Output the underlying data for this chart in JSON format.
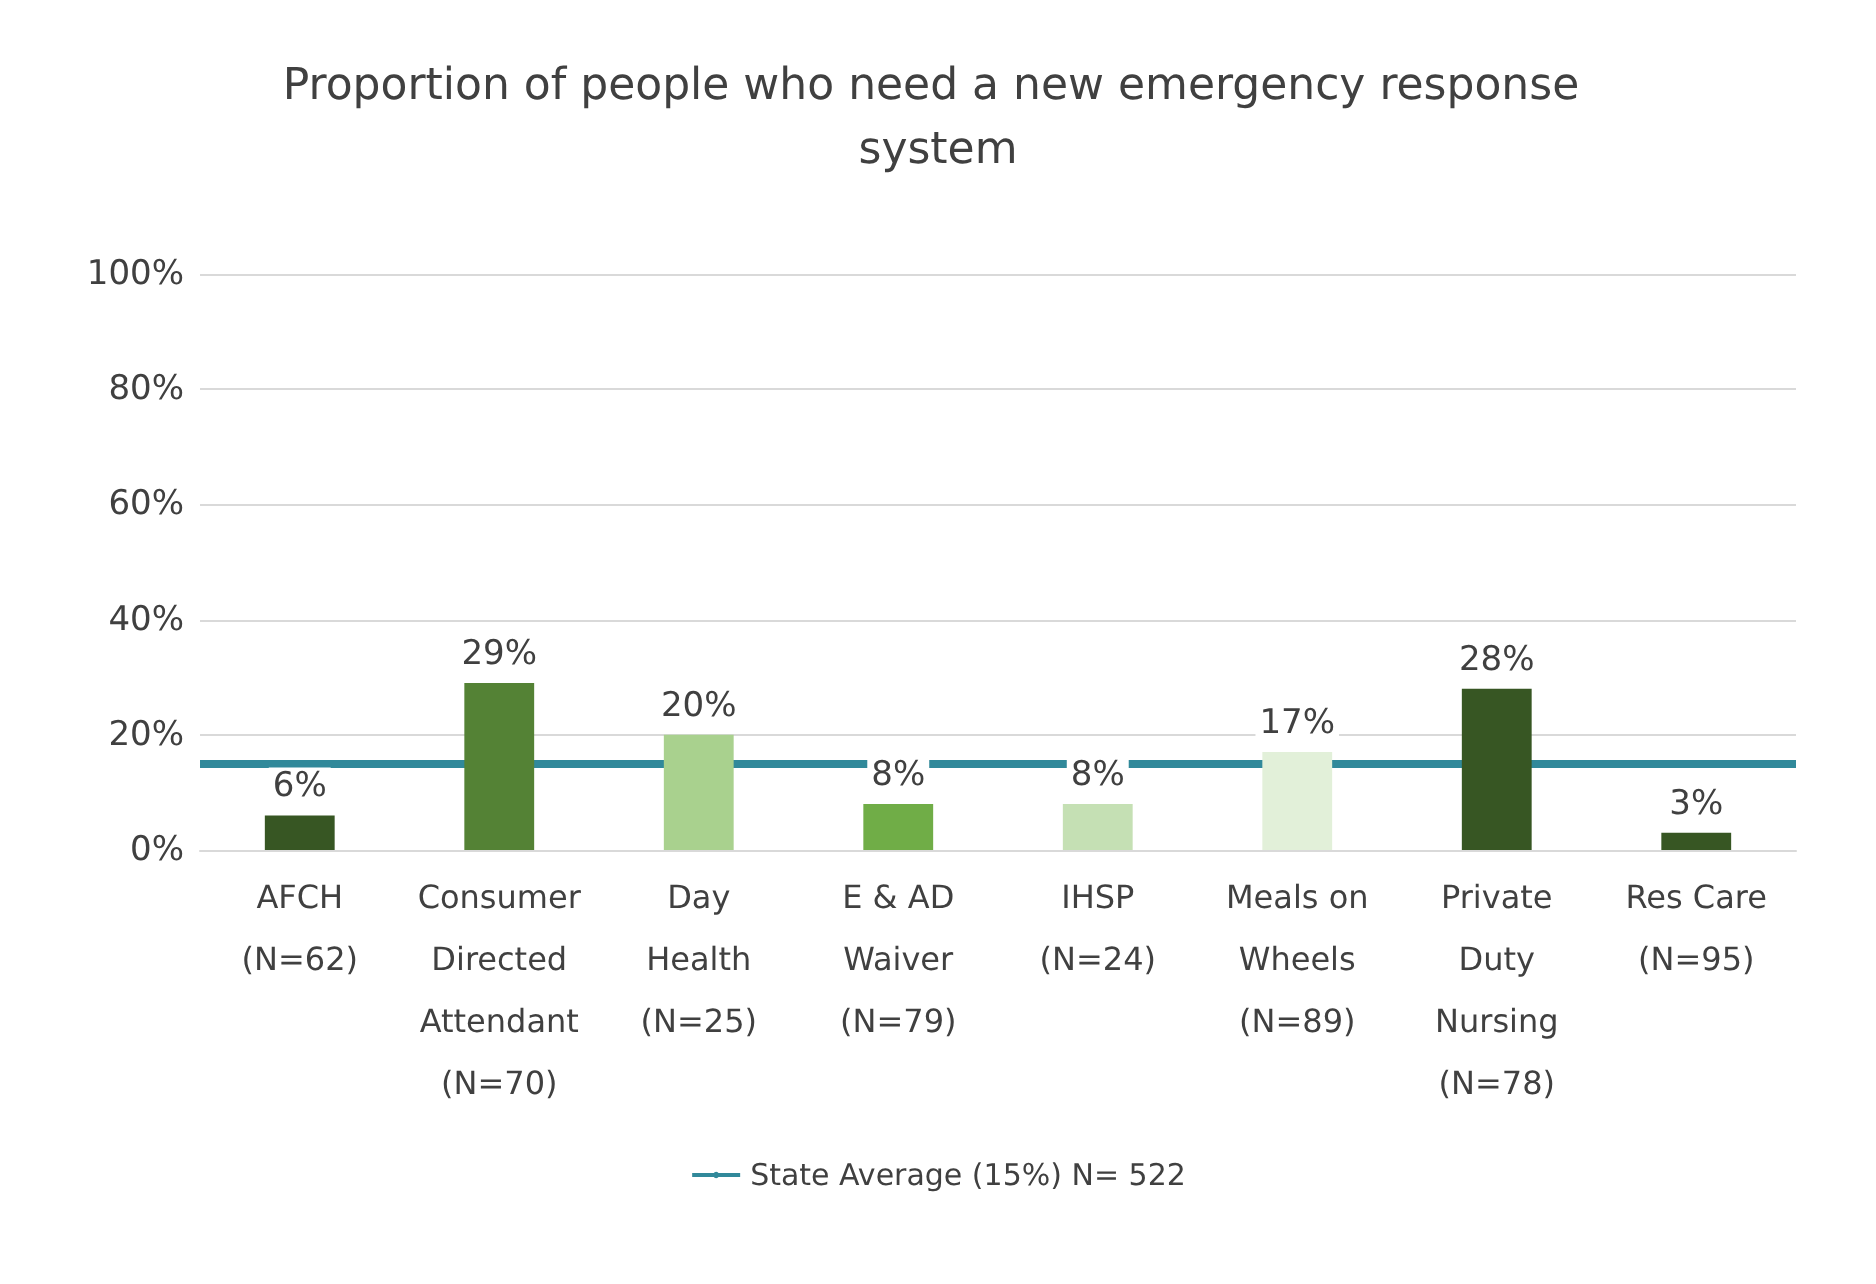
{
  "chart_data": {
    "type": "bar",
    "title": "Proportion of people who need a new emergency response system",
    "categories": [
      "AFCH\n(N=62)",
      "Consumer\nDirected\nAttendant\n(N=70)",
      "Day\nHealth\n(N=25)",
      "E & AD\nWaiver\n(N=79)",
      "IHSP\n(N=24)",
      "Meals on\nWheels\n(N=89)",
      "Private\nDuty\nNursing\n(N=78)",
      "Res Care\n(N=95)"
    ],
    "values": [
      6,
      29,
      20,
      8,
      8,
      17,
      28,
      3
    ],
    "value_labels": [
      "6%",
      "29%",
      "20%",
      "8%",
      "8%",
      "17%",
      "28%",
      "3%"
    ],
    "colors": [
      "#375623",
      "#548235",
      "#a9d18e",
      "#70ad47",
      "#c5e0b4",
      "#e2f0d9",
      "#375623",
      "#375623"
    ],
    "ylim": [
      0,
      100
    ],
    "yticks": [
      {
        "value": 0,
        "label": "0%"
      },
      {
        "value": 20,
        "label": "20%"
      },
      {
        "value": 40,
        "label": "40%"
      },
      {
        "value": 60,
        "label": "60%"
      },
      {
        "value": 80,
        "label": "80%"
      },
      {
        "value": 100,
        "label": "100%"
      }
    ],
    "ref_lines": [
      {
        "axis": "y",
        "value": 15,
        "label": "State Average (15%) N= 522",
        "color": "#31899a"
      }
    ],
    "grid": "y",
    "legend": "bottom"
  }
}
